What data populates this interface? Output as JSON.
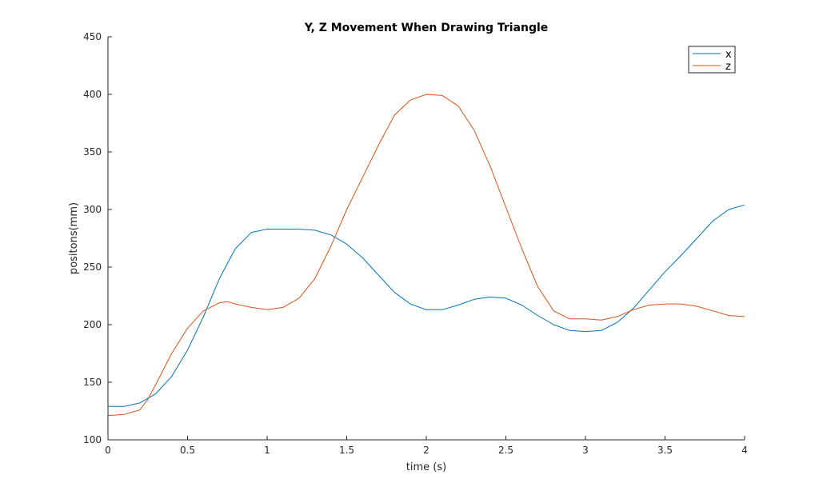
{
  "chart_data": {
    "type": "line",
    "title": "Y, Z Movement When Drawing Triangle",
    "xlabel": "time (s)",
    "ylabel": "positons(mm)",
    "xlim": [
      0,
      4
    ],
    "ylim": [
      100,
      450
    ],
    "xticks": [
      0,
      0.5,
      1,
      1.5,
      2,
      2.5,
      3,
      3.5,
      4
    ],
    "xtick_labels": [
      "0",
      "0.5",
      "1",
      "1.5",
      "2",
      "2.5",
      "3",
      "3.5",
      "4"
    ],
    "yticks": [
      100,
      150,
      200,
      250,
      300,
      350,
      400,
      450
    ],
    "ytick_labels": [
      "100",
      "150",
      "200",
      "250",
      "300",
      "350",
      "400",
      "450"
    ],
    "grid": false,
    "legend_position": "top-right",
    "series": [
      {
        "name": "x",
        "color": "#0072BD",
        "x": [
          0,
          0.1,
          0.2,
          0.3,
          0.4,
          0.5,
          0.6,
          0.7,
          0.8,
          0.9,
          1.0,
          1.1,
          1.2,
          1.3,
          1.4,
          1.5,
          1.6,
          1.7,
          1.8,
          1.9,
          2.0,
          2.1,
          2.2,
          2.3,
          2.4,
          2.5,
          2.6,
          2.7,
          2.8,
          2.9,
          3.0,
          3.1,
          3.2,
          3.3,
          3.4,
          3.5,
          3.6,
          3.7,
          3.8,
          3.9,
          4.0
        ],
        "y": [
          129,
          129,
          132,
          140,
          155,
          178,
          207,
          240,
          266,
          280,
          283,
          283,
          283,
          282,
          278,
          270,
          258,
          243,
          228,
          218,
          213,
          213,
          217,
          222,
          224,
          223,
          217,
          208,
          200,
          195,
          194,
          195,
          202,
          214,
          230,
          246,
          260,
          275,
          290,
          300,
          304
        ]
      },
      {
        "name": "z",
        "color": "#D95319",
        "x": [
          0,
          0.1,
          0.2,
          0.25,
          0.3,
          0.4,
          0.5,
          0.6,
          0.7,
          0.75,
          0.8,
          0.9,
          1.0,
          1.1,
          1.2,
          1.3,
          1.4,
          1.5,
          1.6,
          1.7,
          1.8,
          1.9,
          2.0,
          2.1,
          2.2,
          2.3,
          2.4,
          2.5,
          2.6,
          2.7,
          2.8,
          2.9,
          3.0,
          3.1,
          3.2,
          3.3,
          3.4,
          3.5,
          3.6,
          3.7,
          3.8,
          3.9,
          4.0
        ],
        "y": [
          121,
          122,
          126,
          135,
          148,
          175,
          197,
          212,
          219,
          220,
          218,
          215,
          213,
          215,
          223,
          240,
          268,
          300,
          328,
          356,
          382,
          395,
          400,
          399,
          390,
          369,
          338,
          302,
          266,
          233,
          212,
          205,
          205,
          204,
          207,
          213,
          217,
          218,
          218,
          216,
          212,
          208,
          207
        ]
      }
    ]
  }
}
